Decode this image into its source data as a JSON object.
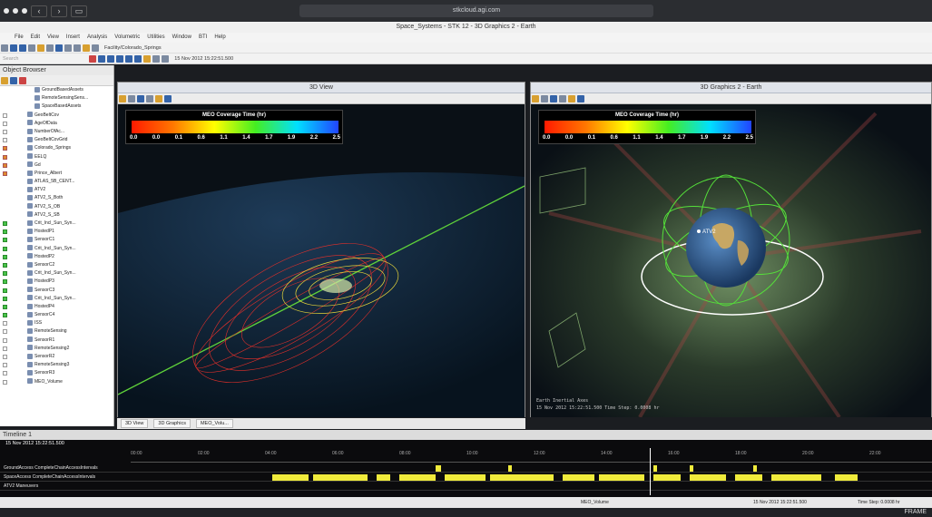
{
  "browser": {
    "url": "stkcloud.agi.com"
  },
  "app": {
    "title": "Space_Systems - STK 12 - 3D Graphics 2 - Earth"
  },
  "menu": [
    "File",
    "Edit",
    "View",
    "Insert",
    "Analysis",
    "Volumetric",
    "Utilities",
    "Window",
    "BTI",
    "Help"
  ],
  "toolbar": {
    "facility": "Facility/Colorado_Springs",
    "time": "15 Nov 2012 15:22:51.500",
    "search_placeholder": "Search"
  },
  "object_browser": {
    "title": "Object Browser",
    "items": [
      {
        "label": "GroundBasedAssets",
        "s": ""
      },
      {
        "label": "RemoteSensingSens...",
        "s": ""
      },
      {
        "label": "SpaceBasedAssets",
        "s": ""
      },
      {
        "label": "GeoBeltCov",
        "s": "w"
      },
      {
        "label": "AgeOfData",
        "s": "w"
      },
      {
        "label": "NumberOfAc...",
        "s": "w"
      },
      {
        "label": "GeoBeltCovGrid",
        "s": "w"
      },
      {
        "label": "Colorado_Springs",
        "s": "o"
      },
      {
        "label": "EELQ",
        "s": "o"
      },
      {
        "label": "Gd",
        "s": "o"
      },
      {
        "label": "Prince_Albert",
        "s": "o"
      },
      {
        "label": "ATLAS_5B_CENT...",
        "s": ""
      },
      {
        "label": "ATV2",
        "s": ""
      },
      {
        "label": "ATV2_S_Both",
        "s": ""
      },
      {
        "label": "ATV2_S_OB",
        "s": ""
      },
      {
        "label": "ATV2_S_SB",
        "s": ""
      },
      {
        "label": "Crit_Incl_Sun_Syn...",
        "s": "g"
      },
      {
        "label": "HostedP1",
        "s": "g"
      },
      {
        "label": "SensorC1",
        "s": "g"
      },
      {
        "label": "Crit_Incl_Sun_Syn...",
        "s": "g"
      },
      {
        "label": "HostedP2",
        "s": "g"
      },
      {
        "label": "SensorC2",
        "s": "g"
      },
      {
        "label": "Crit_Incl_Sun_Syn...",
        "s": "g"
      },
      {
        "label": "HostedP3",
        "s": "g"
      },
      {
        "label": "SensorC3",
        "s": "g"
      },
      {
        "label": "Crit_Incl_Sun_Syn...",
        "s": "g"
      },
      {
        "label": "HostedP4",
        "s": "g"
      },
      {
        "label": "SensorC4",
        "s": "g"
      },
      {
        "label": "ISS",
        "s": "w"
      },
      {
        "label": "RemoteSensing",
        "s": "w"
      },
      {
        "label": "SensorR1",
        "s": "w"
      },
      {
        "label": "RemoteSensing2",
        "s": "w"
      },
      {
        "label": "SensorR2",
        "s": "w"
      },
      {
        "label": "RemoteSensing3",
        "s": "w"
      },
      {
        "label": "SensorR3",
        "s": "w"
      },
      {
        "label": "MEO_Volume",
        "s": "w"
      }
    ]
  },
  "view_3d": {
    "title": "3D View",
    "legend_title": "MEO Coverage Time (hr)",
    "ticks": [
      "0.0",
      "0.0",
      "0.1",
      "0.6",
      "1.1",
      "1.4",
      "1.7",
      "1.9",
      "2.2",
      "2.5"
    ]
  },
  "view_3d_2": {
    "title": "3D Graphics 2 - Earth",
    "legend_title": "MEO Coverage Time (hr)",
    "ticks": [
      "0.0",
      "0.0",
      "0.1",
      "0.6",
      "1.1",
      "1.4",
      "1.7",
      "1.9",
      "2.2",
      "2.5"
    ],
    "frame": "Earth Inertial Axes",
    "stamp": "15 Nov 2012 15:22:51.500     Time Step: 0.0008 hr",
    "sat_label": "ATV2"
  },
  "view_tabs": [
    "3D View",
    "3D Graphics",
    "MEO_Volu..."
  ],
  "timeline": {
    "title": "Timeline 1",
    "clock": "15 Nov 2012 15:22:51.500",
    "ruler": [
      "00:00",
      "02:00",
      "04:00",
      "06:00",
      "08:00",
      "10:00",
      "12:00",
      "14:00",
      "16:00",
      "18:00",
      "20:00",
      "22:00"
    ],
    "rows": [
      "GroundAccess CompleteChainAccessIntervals",
      "SpaceAccess CompleteChainAccessIntervals",
      "ATV2 Maneuvers"
    ],
    "status_object": "MEO_Volume",
    "status_time": "15 Nov 2012 15:22:51.500",
    "status_step": "Time Step: 0.0008 hr"
  },
  "bottom": {
    "brand": "FRAME"
  }
}
